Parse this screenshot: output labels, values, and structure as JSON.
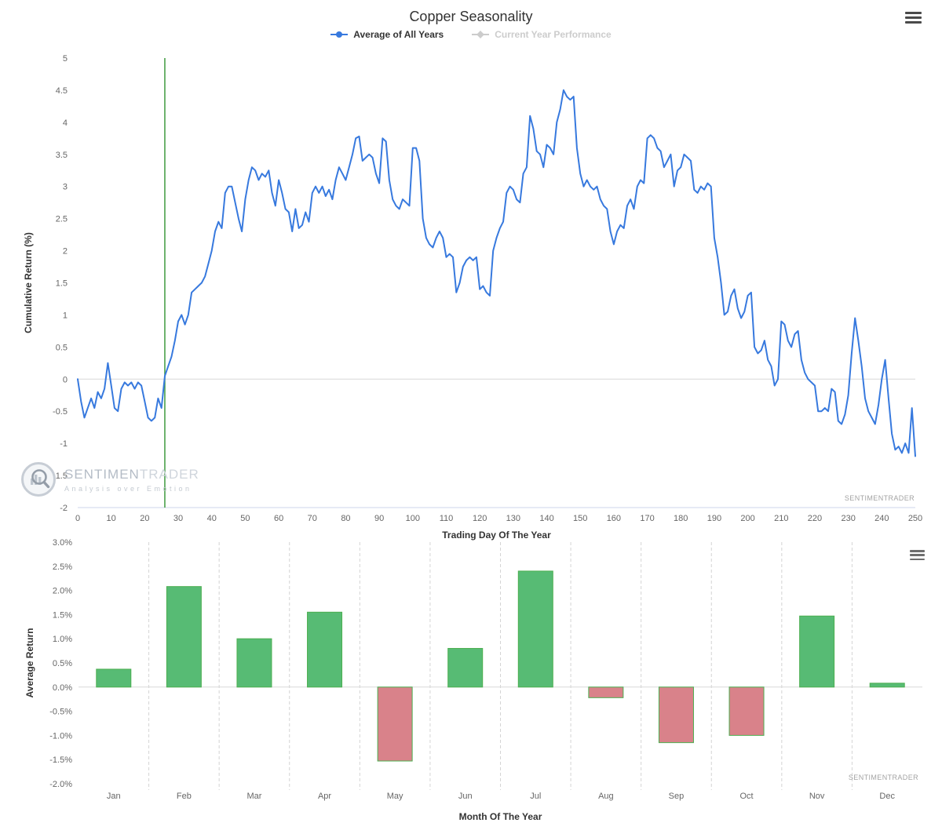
{
  "top_chart": {
    "title": "Copper Seasonality",
    "legend": [
      {
        "label": "Average of All Years",
        "color": "#3779de",
        "active": true,
        "marker": "line-dot"
      },
      {
        "label": "Current Year Performance",
        "color": "#cccccc",
        "active": false,
        "marker": "diamond"
      }
    ],
    "watermark": {
      "brand_primary": "SENTIMEN",
      "brand_secondary": "TRADER",
      "tagline": "Analysis over Emotion"
    },
    "credit": "SENTIMENTRADER",
    "menu_icon": "hamburger-icon"
  },
  "bottom_chart": {
    "credit": "SENTIMENTRADER",
    "menu_icon": "hamburger-icon"
  },
  "chart_data": [
    {
      "type": "line",
      "title": "Copper Seasonality",
      "xlabel": "Trading Day Of The Year",
      "ylabel": "Cumulative Return (%)",
      "xlim": [
        0,
        250
      ],
      "ylim": [
        -2,
        5
      ],
      "x_ticks": [
        0,
        10,
        20,
        30,
        40,
        50,
        60,
        70,
        80,
        90,
        100,
        110,
        120,
        130,
        140,
        150,
        160,
        170,
        180,
        190,
        200,
        210,
        220,
        230,
        240,
        250
      ],
      "y_ticks": [
        5,
        4.5,
        4,
        3.5,
        3,
        2.5,
        2,
        1.5,
        1,
        0.5,
        0,
        -0.5,
        -1,
        -1.5,
        -2
      ],
      "grid": "zero-line-only",
      "legend_position": "top",
      "plot_line_x": 26,
      "plot_line_color": "#3f9b3f",
      "series": [
        {
          "name": "Average of All Years",
          "color": "#3779de",
          "x_start": 0,
          "x_step": 1,
          "y": [
            0,
            -0.35,
            -0.6,
            -0.45,
            -0.3,
            -0.45,
            -0.2,
            -0.3,
            -0.15,
            0.25,
            -0.1,
            -0.45,
            -0.5,
            -0.15,
            -0.05,
            -0.1,
            -0.05,
            -0.15,
            -0.05,
            -0.1,
            -0.35,
            -0.6,
            -0.65,
            -0.6,
            -0.3,
            -0.45,
            0.05,
            0.2,
            0.35,
            0.6,
            0.9,
            1.0,
            0.85,
            1.0,
            1.35,
            1.4,
            1.45,
            1.5,
            1.6,
            1.8,
            2.0,
            2.3,
            2.45,
            2.35,
            2.9,
            3.0,
            3.0,
            2.75,
            2.5,
            2.3,
            2.8,
            3.1,
            3.3,
            3.25,
            3.1,
            3.2,
            3.15,
            3.25,
            2.9,
            2.7,
            3.1,
            2.9,
            2.65,
            2.6,
            2.3,
            2.65,
            2.35,
            2.4,
            2.6,
            2.45,
            2.9,
            3.0,
            2.9,
            3.0,
            2.85,
            2.95,
            2.8,
            3.1,
            3.3,
            3.2,
            3.1,
            3.3,
            3.5,
            3.75,
            3.78,
            3.4,
            3.45,
            3.5,
            3.45,
            3.2,
            3.05,
            3.75,
            3.7,
            3.1,
            2.8,
            2.7,
            2.65,
            2.8,
            2.75,
            2.7,
            3.6,
            3.6,
            3.4,
            2.5,
            2.2,
            2.1,
            2.05,
            2.2,
            2.3,
            2.2,
            1.9,
            1.95,
            1.9,
            1.35,
            1.5,
            1.75,
            1.85,
            1.9,
            1.85,
            1.9,
            1.4,
            1.45,
            1.35,
            1.3,
            2.0,
            2.2,
            2.35,
            2.45,
            2.9,
            3.0,
            2.95,
            2.8,
            2.75,
            3.2,
            3.3,
            4.1,
            3.9,
            3.55,
            3.5,
            3.3,
            3.65,
            3.6,
            3.5,
            4.0,
            4.2,
            4.5,
            4.4,
            4.35,
            4.4,
            3.6,
            3.2,
            3.0,
            3.1,
            3.0,
            2.95,
            3.0,
            2.8,
            2.7,
            2.65,
            2.3,
            2.1,
            2.3,
            2.4,
            2.35,
            2.7,
            2.8,
            2.65,
            3.0,
            3.1,
            3.05,
            3.75,
            3.8,
            3.75,
            3.6,
            3.55,
            3.3,
            3.4,
            3.5,
            3.0,
            3.25,
            3.3,
            3.5,
            3.45,
            3.4,
            2.95,
            2.9,
            3.0,
            2.95,
            3.05,
            3.0,
            2.2,
            1.9,
            1.5,
            1.0,
            1.05,
            1.3,
            1.4,
            1.1,
            0.95,
            1.05,
            1.3,
            1.35,
            0.5,
            0.4,
            0.45,
            0.6,
            0.3,
            0.2,
            -0.1,
            0.0,
            0.9,
            0.85,
            0.6,
            0.5,
            0.7,
            0.75,
            0.3,
            0.1,
            0.0,
            -0.05,
            -0.1,
            -0.5,
            -0.5,
            -0.45,
            -0.5,
            -0.15,
            -0.2,
            -0.65,
            -0.7,
            -0.55,
            -0.25,
            0.4,
            0.95,
            0.6,
            0.2,
            -0.3,
            -0.5,
            -0.6,
            -0.7,
            -0.4,
            0.0,
            0.3,
            -0.3,
            -0.85,
            -1.1,
            -1.05,
            -1.15,
            -1.0,
            -1.15,
            -0.45,
            -1.2
          ]
        },
        {
          "name": "Current Year Performance",
          "color": "#cccccc",
          "visible": false,
          "y": []
        }
      ]
    },
    {
      "type": "bar",
      "categories": [
        "Jan",
        "Feb",
        "Mar",
        "Apr",
        "May",
        "Jun",
        "Jul",
        "Aug",
        "Sep",
        "Oct",
        "Nov",
        "Dec"
      ],
      "values": [
        0.37,
        2.08,
        1.0,
        1.55,
        -1.53,
        0.8,
        2.4,
        -0.22,
        -1.15,
        -1.0,
        1.47,
        0.08
      ],
      "title": "",
      "xlabel": "Month Of The Year",
      "ylabel": "Average Return",
      "ylim": [
        -2.0,
        3.0
      ],
      "y_ticks": [
        3.0,
        2.5,
        2.0,
        1.5,
        1.0,
        0.5,
        0.0,
        -0.5,
        -1.0,
        -1.5,
        -2.0
      ],
      "grid": "dashed-vertical-between-months",
      "positive_color": "#57bb74",
      "negative_color": "#d9828a",
      "bar_border_color": "#4caf50"
    }
  ]
}
